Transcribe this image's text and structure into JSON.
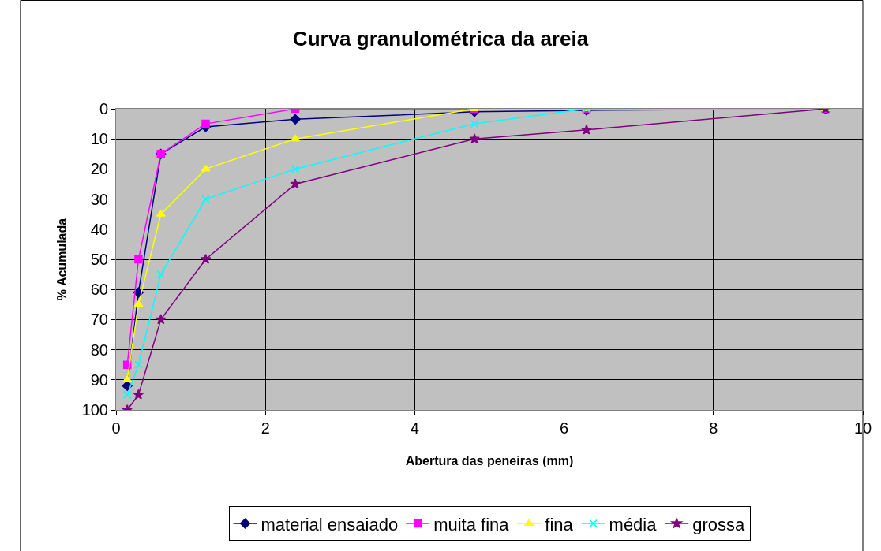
{
  "chart_data": {
    "type": "line",
    "title": "Curva granulométrica da areia",
    "xlabel": "Abertura das peneiras (mm)",
    "ylabel": "% Acumulada",
    "x": [
      0.15,
      0.3,
      0.6,
      1.2,
      2.4,
      4.8,
      6.3,
      9.5
    ],
    "series": [
      {
        "name": "material ensaiado",
        "color": "#000080",
        "marker": "diamond",
        "values": [
          92,
          61,
          15,
          6,
          3.5,
          1,
          0.5,
          0
        ]
      },
      {
        "name": "muita fina",
        "color": "#ff00ff",
        "marker": "square",
        "values": [
          85,
          50,
          15,
          5,
          0,
          0,
          0,
          0
        ]
      },
      {
        "name": "fina",
        "color": "#ffff00",
        "marker": "triangle",
        "values": [
          90,
          65,
          35,
          20,
          10,
          0,
          0,
          0
        ]
      },
      {
        "name": "média",
        "color": "#00ffff",
        "marker": "cross",
        "values": [
          95,
          85,
          55,
          30,
          20,
          5,
          0,
          0
        ]
      },
      {
        "name": "grossa",
        "color": "#800080",
        "marker": "star",
        "values": [
          100,
          95,
          70,
          50,
          25,
          10,
          7,
          0
        ]
      }
    ],
    "xlim": [
      0,
      10
    ],
    "xticks": [
      0,
      2,
      4,
      6,
      8,
      10
    ],
    "ylim": [
      100,
      0
    ],
    "yticks": [
      0,
      10,
      20,
      30,
      40,
      50,
      60,
      70,
      80,
      90,
      100
    ],
    "grid": true,
    "legend": "bottom"
  }
}
